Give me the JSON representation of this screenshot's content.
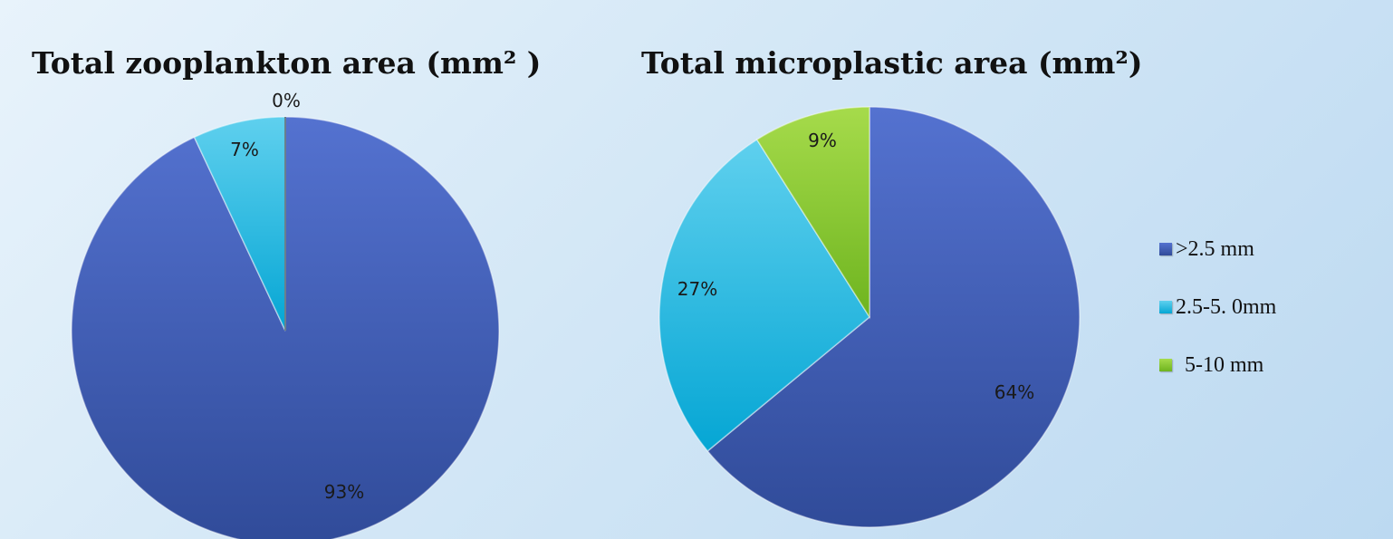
{
  "chart_data": [
    {
      "type": "pie",
      "title": "Total zooplankton area (mm² )",
      "slices": [
        {
          "label": ">2.5 mm",
          "value": 93,
          "label_text": "93%",
          "color": "#3f5cb5"
        },
        {
          "label": "2.5-5. 0mm",
          "value": 7,
          "label_text": "7%",
          "color": "#29b6df"
        },
        {
          "label": "5-10 mm",
          "value": 0,
          "label_text": "0%",
          "color": "#7dc32e"
        }
      ]
    },
    {
      "type": "pie",
      "title": "Total microplastic area (mm²)",
      "slices": [
        {
          "label": ">2.5 mm",
          "value": 64,
          "label_text": "64%",
          "color": "#3f5cb5"
        },
        {
          "label": "2.5-5. 0mm",
          "value": 27,
          "label_text": "27%",
          "color": "#29b6df"
        },
        {
          "label": "5-10 mm",
          "value": 9,
          "label_text": "9%",
          "color": "#7dc32e"
        }
      ]
    }
  ],
  "legend": {
    "placement": "right",
    "items": [
      {
        "label": ">2.5 mm",
        "color": "#3f5cb5"
      },
      {
        "label": "2.5-5. 0mm",
        "color": "#29b6df"
      },
      {
        "label": "5-10 mm",
        "color": "#7dc32e"
      }
    ]
  }
}
